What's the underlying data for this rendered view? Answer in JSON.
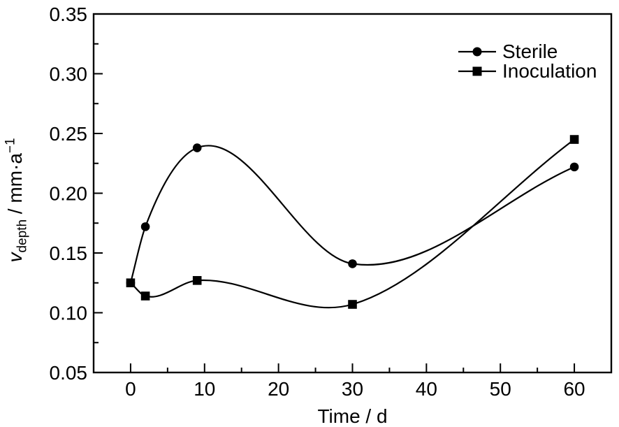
{
  "figure": {
    "background": "#ffffff",
    "foreground": "#000000"
  },
  "chart_data": {
    "type": "line",
    "title": "",
    "xlabel": "Time / d",
    "ylabel": "v_depth / mm·a⁻¹",
    "ylabel_parts": {
      "symbol": "v",
      "subscript": "depth",
      "unit": " / mm·a",
      "exponent": "−1"
    },
    "xlim": [
      -5,
      65
    ],
    "ylim": [
      0.05,
      0.35
    ],
    "x_major_ticks": [
      0,
      10,
      20,
      30,
      40,
      50,
      60
    ],
    "x_tick_labels": [
      "0",
      "10",
      "20",
      "30",
      "40",
      "50",
      "60"
    ],
    "x_minor_step": 5,
    "y_major_ticks": [
      0.05,
      0.1,
      0.15,
      0.2,
      0.25,
      0.3,
      0.35
    ],
    "y_tick_labels": [
      "0.05",
      "0.10",
      "0.15",
      "0.20",
      "0.25",
      "0.30",
      "0.35"
    ],
    "y_minor_step": 0.025,
    "grid": false,
    "curve": "smooth",
    "legend_position": "top-right-inside",
    "series": [
      {
        "name": "Sterile",
        "marker": "circle",
        "color": "#000000",
        "x": [
          0,
          2,
          9,
          30,
          60
        ],
        "y": [
          0.125,
          0.172,
          0.238,
          0.141,
          0.222
        ]
      },
      {
        "name": "Inoculation",
        "marker": "square",
        "color": "#000000",
        "x": [
          0,
          2,
          9,
          30,
          60
        ],
        "y": [
          0.125,
          0.114,
          0.127,
          0.107,
          0.245
        ]
      }
    ]
  }
}
